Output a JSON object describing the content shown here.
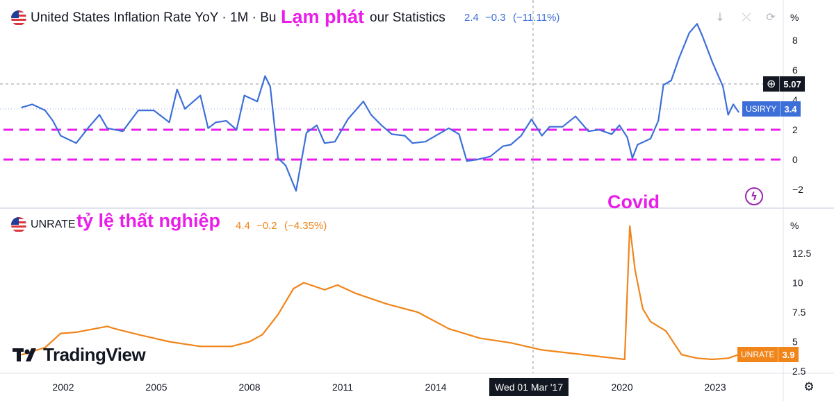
{
  "top_panel": {
    "title": "United States Inflation Rate YoY · 1M · Bu",
    "title_tail": "our Statistics",
    "last_value": "2.4",
    "change": "−0.3",
    "change_pct": "(−11.11%)",
    "annotation": "Lạm phát",
    "axis_unit": "%",
    "symbol": "USIRYY",
    "symbol_value": "3.4",
    "crosshair_value": "5.07",
    "line_color": "#3d6fd9"
  },
  "bottom_panel": {
    "title": "UNRATE",
    "last_value": "4.4",
    "change": "−0.2",
    "change_pct": "(−4.35%)",
    "annotation": "tỷ lệ thất nghiệp",
    "event_label": "Covid",
    "axis_unit": "%",
    "symbol": "UNRATE",
    "symbol_value": "3.9",
    "line_color": "#f0851a"
  },
  "time_axis": {
    "labels": [
      "2002",
      "2005",
      "2008",
      "2011",
      "2014",
      "2017",
      "2020",
      "2023"
    ],
    "crosshair_label": "Wed 01 Mar '17"
  },
  "watermark": {
    "logo_text": "TradingView"
  },
  "icons": [
    "us-flag-icon",
    "down-arrow-icon",
    "collapse-icon",
    "restore-icon",
    "lightning-icon",
    "plus-circle-icon",
    "settings-gear-icon"
  ],
  "chart_data": [
    {
      "type": "line",
      "title": "United States Inflation Rate YoY",
      "ylabel": "%",
      "ylim": [
        -3,
        10
      ],
      "yticks": [
        "8",
        "6",
        "4",
        "2",
        "0",
        "−2"
      ],
      "reference_lines": [
        2,
        0
      ],
      "x": [
        "2000-09",
        "2001-01",
        "2001-06",
        "2001-09",
        "2001-12",
        "2002-06",
        "2002-11",
        "2003-03",
        "2003-06",
        "2003-12",
        "2004-06",
        "2004-12",
        "2005-06",
        "2005-09",
        "2005-12",
        "2006-06",
        "2006-09",
        "2006-12",
        "2007-04",
        "2007-08",
        "2007-11",
        "2008-04",
        "2008-07",
        "2008-09",
        "2008-12",
        "2009-03",
        "2009-07",
        "2009-11",
        "2010-03",
        "2010-06",
        "2010-10",
        "2011-03",
        "2011-09",
        "2011-12",
        "2012-04",
        "2012-08",
        "2013-01",
        "2013-04",
        "2013-09",
        "2014-01",
        "2014-06",
        "2014-10",
        "2015-01",
        "2015-05",
        "2015-10",
        "2016-03",
        "2016-06",
        "2016-10",
        "2017-02",
        "2017-06",
        "2017-09",
        "2018-02",
        "2018-07",
        "2018-12",
        "2019-04",
        "2019-09",
        "2019-12",
        "2020-03",
        "2020-05",
        "2020-07",
        "2020-12",
        "2021-03",
        "2021-05",
        "2021-08",
        "2021-11",
        "2022-03",
        "2022-06",
        "2022-08",
        "2022-12",
        "2023-04",
        "2023-06",
        "2023-08",
        "2023-10"
      ],
      "series": [
        {
          "name": "USIRYY",
          "values": [
            3.5,
            3.7,
            3.3,
            2.6,
            1.6,
            1.1,
            2.2,
            3.0,
            2.1,
            1.9,
            3.3,
            3.3,
            2.5,
            4.7,
            3.4,
            4.3,
            2.1,
            2.5,
            2.6,
            2.0,
            4.3,
            3.9,
            5.6,
            4.9,
            0.1,
            -0.4,
            -2.1,
            1.8,
            2.3,
            1.1,
            1.2,
            2.7,
            3.9,
            3.0,
            2.3,
            1.7,
            1.6,
            1.1,
            1.2,
            1.6,
            2.1,
            1.7,
            -0.1,
            0.0,
            0.2,
            0.9,
            1.0,
            1.6,
            2.7,
            1.6,
            2.2,
            2.2,
            2.9,
            1.9,
            2.0,
            1.7,
            2.3,
            1.5,
            0.1,
            1.0,
            1.4,
            2.6,
            5.0,
            5.3,
            6.8,
            8.5,
            9.1,
            8.3,
            6.5,
            4.9,
            3.0,
            3.7,
            3.2
          ]
        }
      ]
    },
    {
      "type": "line",
      "title": "UNRATE",
      "ylabel": "%",
      "ylim": [
        2.5,
        15.5
      ],
      "yticks": [
        "12.5",
        "10",
        "7.5",
        "5",
        "2.5"
      ],
      "x": [
        "2000-09",
        "2001-06",
        "2001-12",
        "2002-06",
        "2003-06",
        "2003-09",
        "2004-06",
        "2005-06",
        "2006-06",
        "2007-06",
        "2008-01",
        "2008-06",
        "2008-12",
        "2009-06",
        "2009-10",
        "2010-06",
        "2010-11",
        "2011-06",
        "2012-06",
        "2013-06",
        "2014-06",
        "2015-06",
        "2016-06",
        "2017-06",
        "2018-06",
        "2019-06",
        "2020-02",
        "2020-04",
        "2020-06",
        "2020-09",
        "2020-12",
        "2021-06",
        "2021-12",
        "2022-06",
        "2022-12",
        "2023-06",
        "2023-10"
      ],
      "series": [
        {
          "name": "UNRATE",
          "values": [
            3.9,
            4.5,
            5.7,
            5.8,
            6.3,
            6.1,
            5.6,
            5.0,
            4.6,
            4.6,
            5.0,
            5.6,
            7.3,
            9.5,
            10.0,
            9.4,
            9.8,
            9.1,
            8.2,
            7.5,
            6.1,
            5.3,
            4.9,
            4.3,
            4.0,
            3.7,
            3.5,
            14.8,
            11.1,
            7.8,
            6.7,
            5.9,
            3.9,
            3.6,
            3.5,
            3.6,
            3.9
          ]
        }
      ]
    }
  ]
}
